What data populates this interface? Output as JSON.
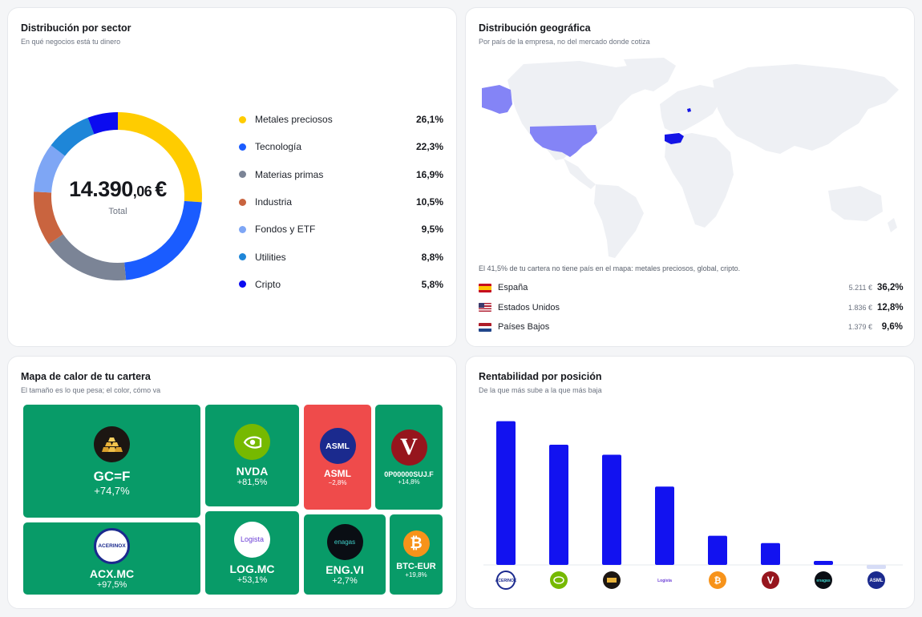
{
  "colors": {
    "precious_metals": "#ffcc00",
    "tech": "#1a5cff",
    "materials": "#7b8496",
    "industry": "#c9643f",
    "funds": "#7ea6f5",
    "utilities": "#1e86d8",
    "crypto": "#0b0bf0",
    "green": "#089b68",
    "red": "#ef4b4b",
    "bar": "#1212f0"
  },
  "sector": {
    "title": "Distribución por sector",
    "subtitle": "En qué negocios está tu dinero",
    "total_int": "14.390",
    "total_dec": ",06",
    "total_currency": "€",
    "total_label": "Total",
    "items": [
      {
        "label": "Metales preciosos",
        "value": "26,1%",
        "pct": 26.1,
        "color": "#ffcc00"
      },
      {
        "label": "Tecnología",
        "value": "22,3%",
        "pct": 22.3,
        "color": "#1a5cff"
      },
      {
        "label": "Materias primas",
        "value": "16,9%",
        "pct": 16.9,
        "color": "#7b8496"
      },
      {
        "label": "Industria",
        "value": "10,5%",
        "pct": 10.5,
        "color": "#c9643f"
      },
      {
        "label": "Fondos y ETF",
        "value": "9,5%",
        "pct": 9.5,
        "color": "#7ea6f5"
      },
      {
        "label": "Utilities",
        "value": "8,8%",
        "pct": 8.8,
        "color": "#1e86d8"
      },
      {
        "label": "Cripto",
        "value": "5,8%",
        "pct": 5.8,
        "color": "#0b0bf0"
      }
    ]
  },
  "geo": {
    "title": "Distribución geográfica",
    "subtitle": "Por país de la empresa, no del mercado donde cotiza",
    "note": "El 41,5% de tu cartera no tiene país en el mapa: metales preciosos, global, cripto.",
    "rows": [
      {
        "name": "España",
        "amount": "5.211 €",
        "pct": "36,2%"
      },
      {
        "name": "Estados Unidos",
        "amount": "1.836 €",
        "pct": "12,8%"
      },
      {
        "name": "Países Bajos",
        "amount": "1.379 €",
        "pct": "9,6%"
      }
    ]
  },
  "heatmap": {
    "title": "Mapa de calor de tu cartera",
    "subtitle": "El tamaño es lo que pesa; el color, cómo va",
    "tiles": [
      {
        "ticker": "GC=F",
        "change": "+74,7%",
        "logo": "gold-bars-icon",
        "logo_text": ""
      },
      {
        "ticker": "NVDA",
        "change": "+81,5%",
        "logo": "nvidia-icon",
        "logo_text": ""
      },
      {
        "ticker": "ASML",
        "change": "−2,8%",
        "logo": "asml-icon",
        "logo_text": "ASML"
      },
      {
        "ticker": "0P00000SUJ.F",
        "change": "+14,8%",
        "logo": "vanguard-icon",
        "logo_text": "V"
      },
      {
        "ticker": "ACX.MC",
        "change": "+97,5%",
        "logo": "acerinox-icon",
        "logo_text": "ACERINOX"
      },
      {
        "ticker": "LOG.MC",
        "change": "+53,1%",
        "logo": "logista-icon",
        "logo_text": "Logista"
      },
      {
        "ticker": "ENG.VI",
        "change": "+2,7%",
        "logo": "enagas-icon",
        "logo_text": "enagas"
      },
      {
        "ticker": "BTC-EUR",
        "change": "+19,8%",
        "logo": "bitcoin-icon",
        "logo_text": "₿"
      }
    ]
  },
  "returns": {
    "title": "Rentabilidad por posición",
    "subtitle": "De la que más sube a la que más baja"
  },
  "chart_data": {
    "type": "bar",
    "categories": [
      "ACX.MC",
      "NVDA",
      "GC=F",
      "LOG.MC",
      "BTC-EUR",
      "0P00000SUJ.F",
      "ENG.VI",
      "ASML"
    ],
    "values": [
      97.5,
      81.5,
      74.7,
      53.1,
      19.8,
      14.8,
      2.7,
      -2.8
    ],
    "logos": [
      "acerinox-icon",
      "nvidia-icon",
      "gold-bars-icon",
      "logista-icon",
      "bitcoin-icon",
      "vanguard-icon",
      "enagas-icon",
      "asml-icon"
    ],
    "logo_texts": [
      "ACERINOX",
      "",
      "",
      "Logista",
      "₿",
      "V",
      "enagas",
      "ASML"
    ],
    "ylim": [
      -3,
      100
    ],
    "grid": false
  }
}
